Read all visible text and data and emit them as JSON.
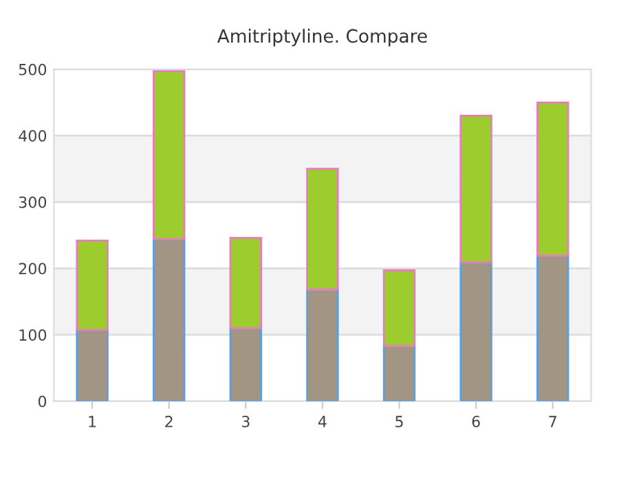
{
  "chart_data": {
    "type": "bar",
    "title": "Amitriptyline. Compare",
    "stacked": true,
    "categories": [
      "1",
      "2",
      "3",
      "4",
      "5",
      "6",
      "7"
    ],
    "series": [
      {
        "color": "#a39584",
        "values": [
          107,
          244,
          110,
          168,
          83,
          209,
          219
        ]
      },
      {
        "color": "#9ccc2e",
        "values": [
          135,
          253,
          136,
          182,
          114,
          221,
          231
        ]
      }
    ],
    "ylim": [
      0,
      500
    ],
    "yticks": [
      0,
      100,
      200,
      300,
      400,
      500
    ],
    "grid": "y",
    "bands": [
      {
        "axis": "y",
        "from": 100,
        "to": 200,
        "color": "#f3f3f3"
      },
      {
        "axis": "y",
        "from": 300,
        "to": 400,
        "color": "#f3f3f3"
      }
    ],
    "legend": false
  }
}
